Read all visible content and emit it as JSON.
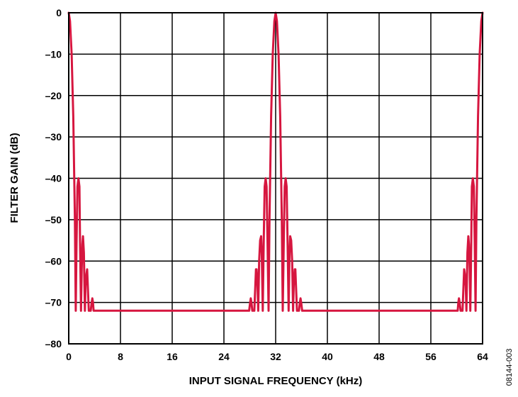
{
  "figure_id": "08144-003",
  "chart_data": {
    "type": "line",
    "xlabel": "INPUT SIGNAL FREQUENCY (kHz)",
    "ylabel": "FILTER GAIN (dB)",
    "xlim": [
      0,
      64
    ],
    "ylim": [
      -80,
      0
    ],
    "xticks": [
      0,
      8,
      16,
      24,
      32,
      40,
      48,
      56,
      64
    ],
    "yticks": [
      0,
      -10,
      -20,
      -30,
      -40,
      -50,
      -60,
      -70,
      -80
    ],
    "grid": true,
    "line_color": "#d6163f",
    "series": [
      {
        "points": [
          [
            0,
            0
          ],
          [
            0.2,
            -2
          ],
          [
            0.45,
            -10
          ],
          [
            0.7,
            -25
          ],
          [
            0.95,
            -50
          ],
          [
            1.08,
            -72
          ],
          [
            1.2,
            -56
          ],
          [
            1.35,
            -42
          ],
          [
            1.5,
            -40
          ],
          [
            1.65,
            -42
          ],
          [
            1.75,
            -56
          ],
          [
            1.9,
            -72
          ],
          [
            2.0,
            -62
          ],
          [
            2.1,
            -56
          ],
          [
            2.2,
            -54
          ],
          [
            2.35,
            -58
          ],
          [
            2.5,
            -72
          ],
          [
            2.6,
            -66
          ],
          [
            2.75,
            -63
          ],
          [
            2.85,
            -62
          ],
          [
            2.95,
            -66
          ],
          [
            3.1,
            -72
          ],
          [
            3.4,
            -72
          ],
          [
            3.55,
            -70
          ],
          [
            3.65,
            -69
          ],
          [
            3.75,
            -70
          ],
          [
            3.85,
            -72
          ],
          [
            27.9,
            -72
          ],
          [
            28.05,
            -70
          ],
          [
            28.15,
            -69
          ],
          [
            28.25,
            -70
          ],
          [
            28.4,
            -72
          ],
          [
            28.7,
            -72
          ],
          [
            28.85,
            -66
          ],
          [
            28.95,
            -62
          ],
          [
            29.05,
            -62
          ],
          [
            29.2,
            -66
          ],
          [
            29.3,
            -72
          ],
          [
            29.45,
            -60
          ],
          [
            29.6,
            -55
          ],
          [
            29.75,
            -54
          ],
          [
            29.85,
            -58
          ],
          [
            30.0,
            -72
          ],
          [
            30.15,
            -56
          ],
          [
            30.3,
            -42
          ],
          [
            30.45,
            -40
          ],
          [
            30.6,
            -42
          ],
          [
            30.75,
            -56
          ],
          [
            30.9,
            -72
          ],
          [
            31.05,
            -50
          ],
          [
            31.3,
            -25
          ],
          [
            31.55,
            -10
          ],
          [
            31.8,
            -2
          ],
          [
            32.0,
            0
          ],
          [
            32.2,
            -2
          ],
          [
            32.45,
            -10
          ],
          [
            32.7,
            -25
          ],
          [
            32.95,
            -50
          ],
          [
            33.1,
            -72
          ],
          [
            33.25,
            -56
          ],
          [
            33.4,
            -42
          ],
          [
            33.55,
            -40
          ],
          [
            33.7,
            -42
          ],
          [
            33.85,
            -56
          ],
          [
            34.0,
            -72
          ],
          [
            34.15,
            -58
          ],
          [
            34.25,
            -54
          ],
          [
            34.4,
            -55
          ],
          [
            34.55,
            -60
          ],
          [
            34.7,
            -72
          ],
          [
            34.8,
            -66
          ],
          [
            34.95,
            -62
          ],
          [
            35.05,
            -62
          ],
          [
            35.15,
            -66
          ],
          [
            35.3,
            -72
          ],
          [
            35.6,
            -72
          ],
          [
            35.75,
            -70
          ],
          [
            35.85,
            -69
          ],
          [
            35.95,
            -70
          ],
          [
            36.1,
            -72
          ],
          [
            60.15,
            -72
          ],
          [
            60.25,
            -70
          ],
          [
            60.35,
            -69
          ],
          [
            60.45,
            -70
          ],
          [
            60.6,
            -72
          ],
          [
            60.9,
            -72
          ],
          [
            61.05,
            -66
          ],
          [
            61.15,
            -62
          ],
          [
            61.25,
            -63
          ],
          [
            61.4,
            -66
          ],
          [
            61.5,
            -72
          ],
          [
            61.65,
            -58
          ],
          [
            61.8,
            -54
          ],
          [
            61.9,
            -56
          ],
          [
            62.0,
            -62
          ],
          [
            62.1,
            -72
          ],
          [
            62.25,
            -56
          ],
          [
            62.35,
            -42
          ],
          [
            62.5,
            -40
          ],
          [
            62.65,
            -42
          ],
          [
            62.8,
            -56
          ],
          [
            62.92,
            -72
          ],
          [
            63.05,
            -50
          ],
          [
            63.3,
            -25
          ],
          [
            63.55,
            -10
          ],
          [
            63.8,
            -2
          ],
          [
            64,
            0
          ]
        ]
      }
    ]
  }
}
